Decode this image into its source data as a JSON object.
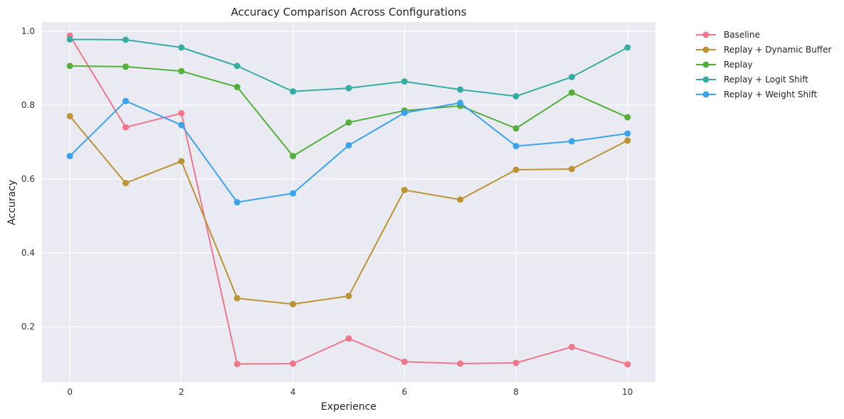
{
  "chart_data": {
    "type": "line",
    "title": "Accuracy Comparison Across Configurations",
    "xlabel": "Experience",
    "ylabel": "Accuracy",
    "x": [
      0,
      1,
      2,
      3,
      4,
      5,
      6,
      7,
      8,
      9,
      10
    ],
    "xlim": [
      -0.5,
      10.5
    ],
    "ylim": [
      0.05,
      1.025
    ],
    "xticks": [
      0,
      2,
      4,
      6,
      8,
      10
    ],
    "yticks": [
      0.2,
      0.4,
      0.6,
      0.8,
      1.0
    ],
    "grid": true,
    "legend_position": "outside-right",
    "background": "#eaeaf2",
    "series": [
      {
        "name": "Baseline",
        "color": "#f0768b",
        "values": [
          0.988,
          0.74,
          0.778,
          0.099,
          0.1,
          0.168,
          0.105,
          0.1,
          0.102,
          0.145,
          0.098
        ]
      },
      {
        "name": "Replay + Dynamic Buffer",
        "color": "#bd9434",
        "values": [
          0.77,
          0.589,
          0.648,
          0.277,
          0.261,
          0.283,
          0.57,
          0.544,
          0.625,
          0.627,
          0.704
        ]
      },
      {
        "name": "Replay",
        "color": "#54b03a",
        "values": [
          0.906,
          0.904,
          0.892,
          0.849,
          0.662,
          0.753,
          0.785,
          0.798,
          0.737,
          0.834,
          0.767
        ]
      },
      {
        "name": "Replay + Logit Shift",
        "color": "#36ada4",
        "values": [
          0.978,
          0.977,
          0.956,
          0.906,
          0.837,
          0.846,
          0.864,
          0.842,
          0.824,
          0.876,
          0.956
        ]
      },
      {
        "name": "Replay + Weight Shift",
        "color": "#3ba3ec",
        "values": [
          0.662,
          0.811,
          0.746,
          0.537,
          0.561,
          0.691,
          0.779,
          0.806,
          0.689,
          0.702,
          0.723
        ]
      }
    ]
  }
}
